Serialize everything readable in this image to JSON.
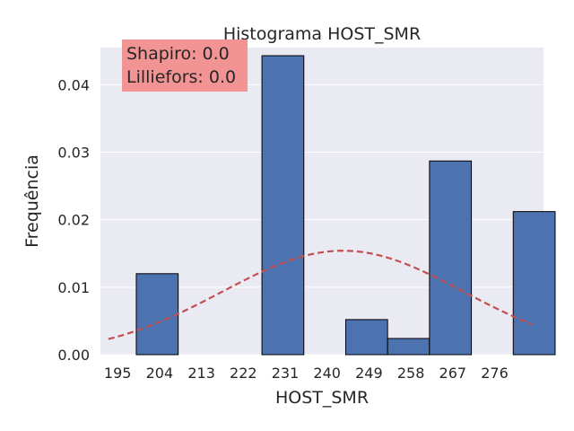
{
  "chart_data": {
    "type": "bar",
    "title": "Histograma HOST_SMR",
    "xlabel": "HOST_SMR",
    "ylabel": "Frequência",
    "annotation": [
      "Shapiro: 0.0",
      "Lilliefors: 0.0"
    ],
    "xlim": [
      191.3,
      286.5
    ],
    "ylim": [
      0,
      0.0455
    ],
    "xticks": [
      195,
      204,
      213,
      222,
      231,
      240,
      249,
      258,
      267,
      276
    ],
    "yticks": [
      "0.00",
      "0.01",
      "0.02",
      "0.03",
      "0.04"
    ],
    "bins": [
      {
        "start": 199.0,
        "end": 208.0,
        "density": 0.012
      },
      {
        "start": 208.0,
        "end": 217.0,
        "density": 0.0
      },
      {
        "start": 217.0,
        "end": 226.0,
        "density": 0.0
      },
      {
        "start": 226.0,
        "end": 235.0,
        "density": 0.0443
      },
      {
        "start": 235.0,
        "end": 244.0,
        "density": 0.0
      },
      {
        "start": 244.0,
        "end": 253.0,
        "density": 0.0052
      },
      {
        "start": 253.0,
        "end": 262.0,
        "density": 0.0024
      },
      {
        "start": 262.0,
        "end": 271.0,
        "density": 0.0287
      },
      {
        "start": 271.0,
        "end": 280.0,
        "density": 0.0
      },
      {
        "start": 280.0,
        "end": 289.0,
        "density": 0.0212
      }
    ],
    "normal_curve": {
      "mean": 243.4,
      "std": 25.9,
      "style": "dashed",
      "color": "#c44e52"
    },
    "grid": true,
    "colors": {
      "bar": "#4c72b0",
      "bar_edge": "#000000",
      "background": "#eaeaf2",
      "grid": "#ffffff",
      "annot_box": "#f28e8e"
    }
  }
}
